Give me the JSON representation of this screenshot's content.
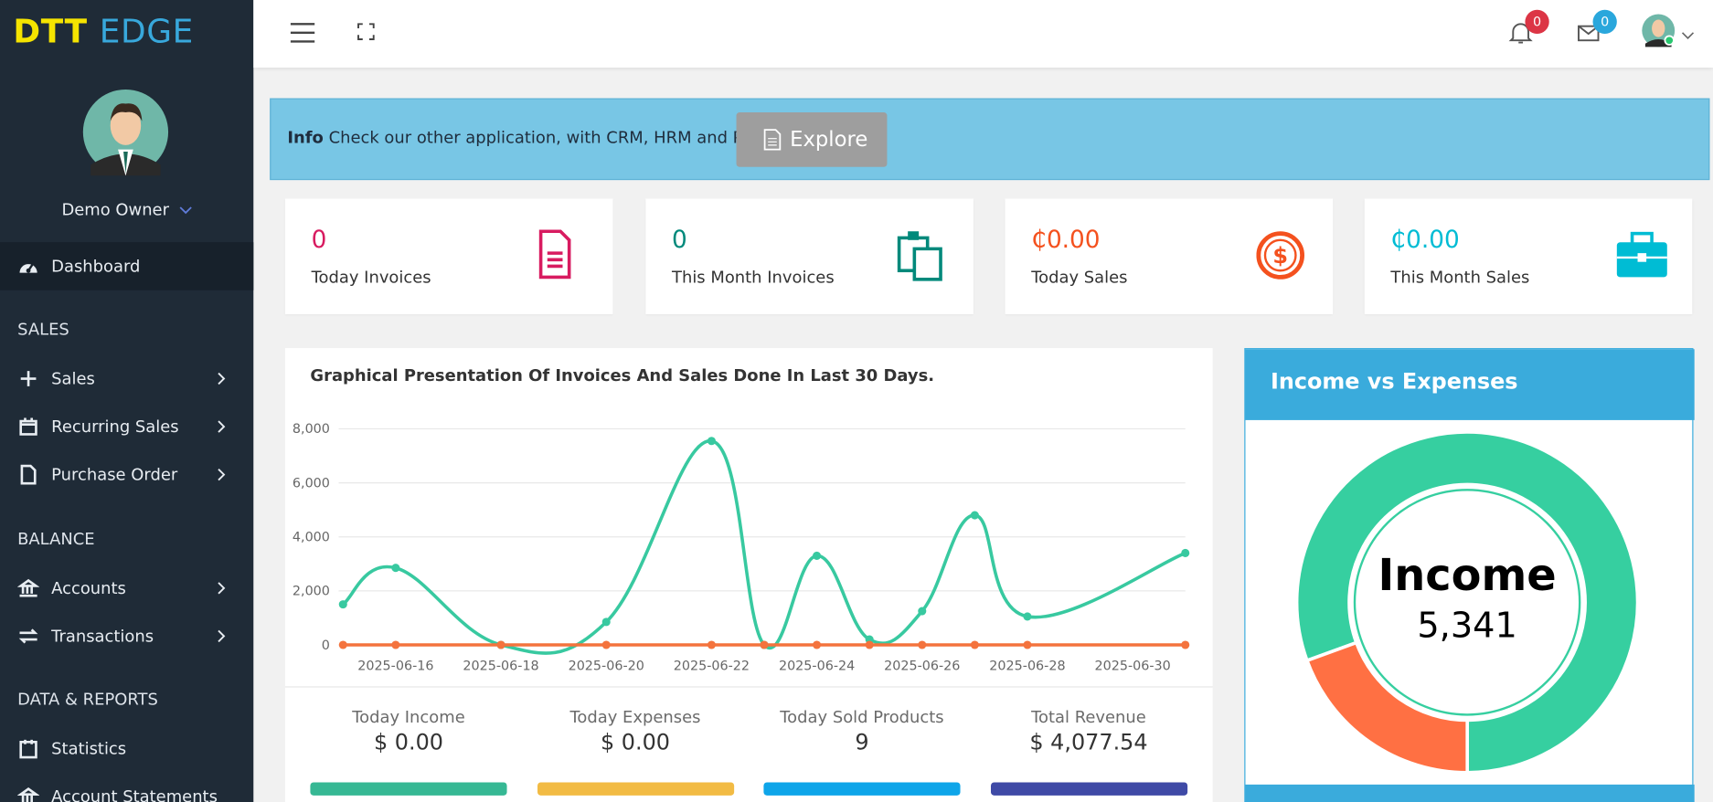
{
  "brand": {
    "part1": "DTT",
    "part2": "EDGE"
  },
  "user": {
    "name": "Demo Owner"
  },
  "header": {
    "notifications": 0,
    "messages": 0
  },
  "nav": {
    "active": "Dashboard",
    "sections": [
      {
        "title": "SALES",
        "items": [
          "Sales",
          "Recurring Sales",
          "Purchase Order"
        ]
      },
      {
        "title": "BALANCE",
        "items": [
          "Accounts",
          "Transactions"
        ]
      },
      {
        "title": "DATA & REPORTS",
        "items": [
          "Statistics",
          "Account Statements"
        ]
      }
    ]
  },
  "info": {
    "label": "Info",
    "text": "Check our other application, with CRM, HRM and POS",
    "button": "Explore"
  },
  "cards": [
    {
      "value": "0",
      "label": "Today Invoices"
    },
    {
      "value": "0",
      "label": "This Month Invoices"
    },
    {
      "value": "₵0.00",
      "label": "Today Sales"
    },
    {
      "value": "₵0.00",
      "label": "This Month Sales"
    }
  ],
  "chart_data": [
    {
      "type": "line",
      "title": "Graphical Presentation Of Invoices And Sales Done In Last 30 Days.",
      "x": [
        "2025-06-15",
        "2025-06-16",
        "2025-06-18",
        "2025-06-20",
        "2025-06-22",
        "2025-06-23",
        "2025-06-24",
        "2025-06-25",
        "2025-06-26",
        "2025-06-27",
        "2025-06-28",
        "2025-07-01"
      ],
      "series": [
        {
          "color": "#38c9a0",
          "values": [
            1500,
            2850,
            0,
            850,
            7550,
            0,
            3300,
            200,
            1250,
            4800,
            1050,
            3400
          ]
        },
        {
          "color": "#f4733d",
          "values": [
            0,
            0,
            0,
            0,
            0,
            0,
            0,
            0,
            0,
            0,
            0,
            0
          ]
        }
      ],
      "xlim": [
        "2025-06-15",
        "2025-07-01"
      ],
      "xticks": [
        "2025-06-16",
        "2025-06-18",
        "2025-06-20",
        "2025-06-22",
        "2025-06-24",
        "2025-06-26",
        "2025-06-28",
        "2025-06-30"
      ],
      "ylim": [
        0,
        8000
      ],
      "yticks": [
        0,
        {
          "value": 2000,
          "label": "2,000"
        },
        {
          "value": 4000,
          "label": "4,000"
        },
        {
          "value": 6000,
          "label": "6,000"
        },
        {
          "value": 8000,
          "label": "8,000"
        }
      ],
      "grid": true
    },
    {
      "type": "pie",
      "title": "Income vs Expenses",
      "categories": [
        "Income",
        null
      ],
      "values": [
        5341,
        1290
      ],
      "value_labels": [
        "5,341",
        null
      ],
      "colors": [
        "#36cfa0",
        "#ff7043"
      ]
    }
  ],
  "summary": [
    {
      "label": "Today Income",
      "value": "$ 0.00",
      "color": "#36b894"
    },
    {
      "label": "Today Expenses",
      "value": "$ 0.00",
      "color": "#f2bb44"
    },
    {
      "label": "Today Sold Products",
      "value": "9",
      "color": "#0ea5e9"
    },
    {
      "label": "Total Revenue",
      "value": "$ 4,077.54",
      "color": "#3f4aa6"
    }
  ]
}
